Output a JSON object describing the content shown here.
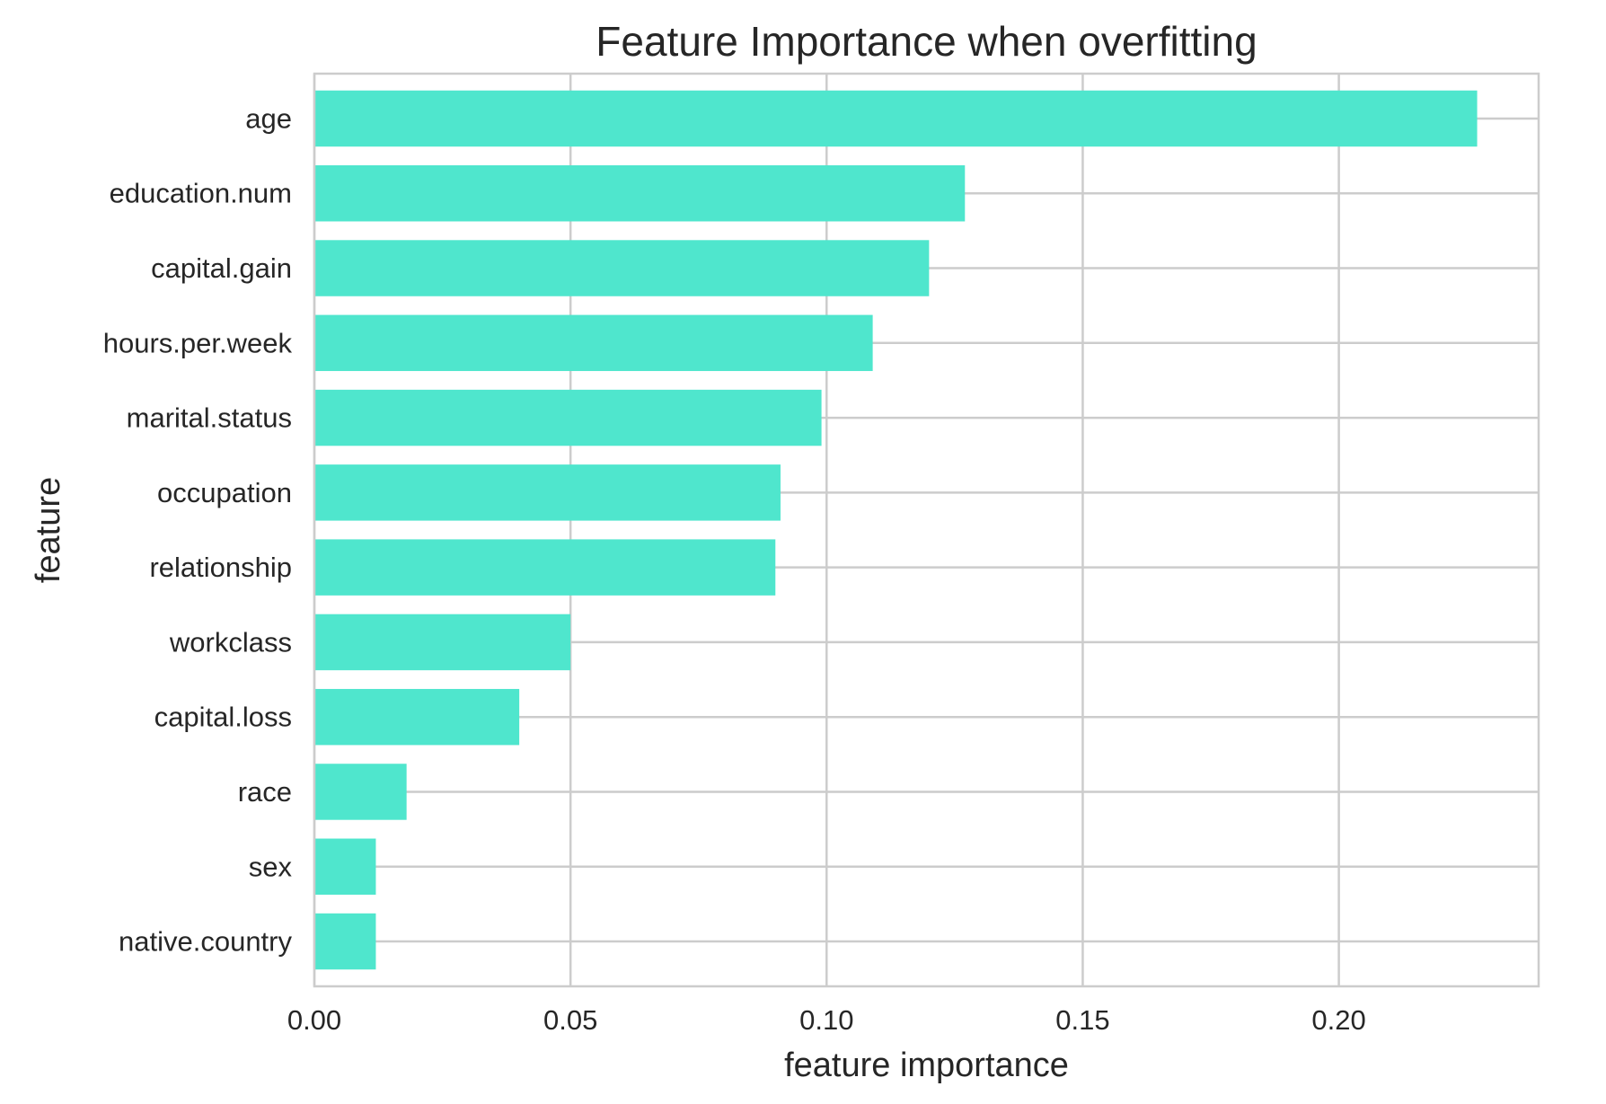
{
  "chart_data": {
    "type": "bar",
    "orientation": "horizontal",
    "title": "Feature Importance when overfitting",
    "xlabel": "feature importance",
    "ylabel": "feature",
    "categories": [
      "age",
      "education.num",
      "capital.gain",
      "hours.per.week",
      "marital.status",
      "occupation",
      "relationship",
      "workclass",
      "capital.loss",
      "race",
      "sex",
      "native.country"
    ],
    "values": [
      0.227,
      0.127,
      0.12,
      0.109,
      0.099,
      0.091,
      0.09,
      0.05,
      0.04,
      0.018,
      0.012,
      0.012
    ],
    "xlim": [
      0,
      0.239
    ],
    "xticks": [
      0.0,
      0.05,
      0.1,
      0.15,
      0.2
    ],
    "xtick_labels": [
      "0.00",
      "0.05",
      "0.10",
      "0.15",
      "0.20"
    ],
    "grid": true,
    "legend": "none",
    "bar_color": "#4fe6cd"
  }
}
